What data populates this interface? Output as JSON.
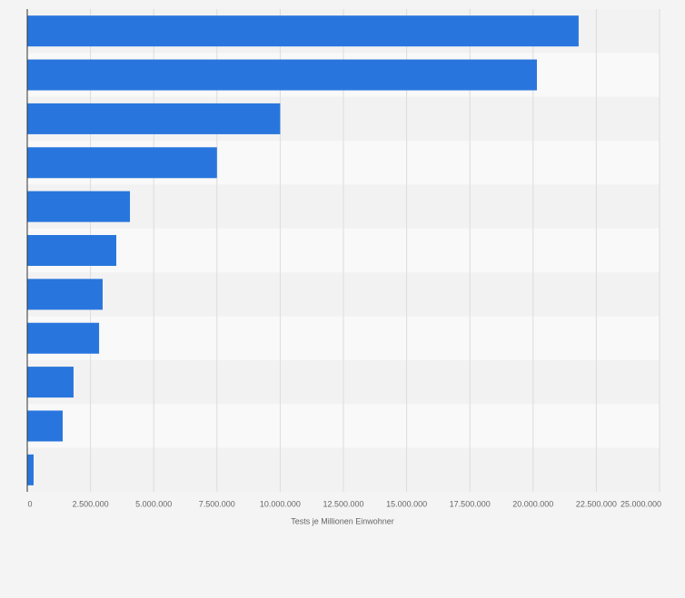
{
  "chart_data": {
    "type": "hbar",
    "x_label": "Tests je Millionen Einwohner",
    "categories": [
      null,
      null,
      null,
      null,
      null,
      null,
      null,
      null,
      null,
      null,
      null
    ],
    "values": [
      21800000,
      20150000,
      10000000,
      7500000,
      4060000,
      3520000,
      2980000,
      2840000,
      1830000,
      1400000,
      250000
    ],
    "color": "#2876dd",
    "xlim": [
      0,
      25000000
    ],
    "xticks": [
      0,
      {
        "value": 2500000,
        "label": "2.500.000"
      },
      {
        "value": 5000000,
        "label": "5.000.000"
      },
      {
        "value": 7500000,
        "label": "7.500.000"
      },
      {
        "value": 10000000,
        "label": "10.000.000"
      },
      {
        "value": 12500000,
        "label": "12.500.000"
      },
      {
        "value": 15000000,
        "label": "15.000.000"
      },
      {
        "value": 17500000,
        "label": "17.500.000"
      },
      {
        "value": 20000000,
        "label": "20.000.000"
      },
      {
        "value": 22500000,
        "label": "22.500.000"
      },
      {
        "value": 25000000,
        "label": "25.000.000"
      }
    ],
    "grid": true
  }
}
